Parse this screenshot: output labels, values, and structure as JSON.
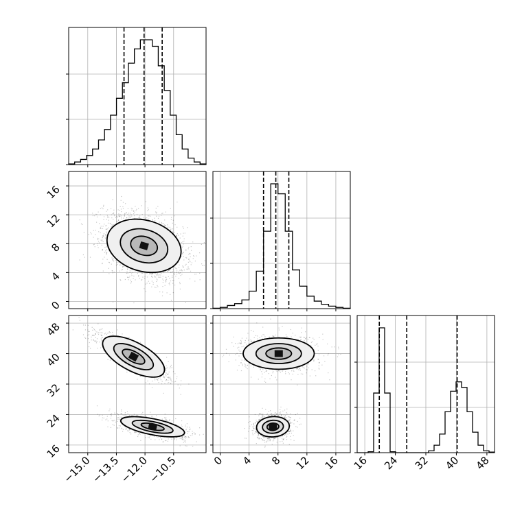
{
  "chart_data": {
    "type": "corner",
    "parameters": [
      "",
      "",
      ""
    ],
    "ranges": [
      [
        -16.0,
        -8.8
      ],
      [
        -1.0,
        18.0
      ],
      [
        14.0,
        50.0
      ]
    ],
    "ticks": [
      {
        "values": [
          -15.0,
          -13.5,
          -12.0,
          -10.5
        ],
        "labels": [
          "−15.0",
          "−13.5",
          "−12.0",
          "−10.5"
        ]
      },
      {
        "values": [
          0,
          4,
          8,
          12,
          16
        ],
        "labels": [
          "0",
          "4",
          "8",
          "12",
          "16"
        ]
      },
      {
        "values": [
          16,
          24,
          32,
          40,
          48
        ],
        "labels": [
          "16",
          "24",
          "32",
          "40",
          "48"
        ]
      }
    ],
    "quantiles": [
      [
        -13.1,
        -12.05,
        -11.1
      ],
      [
        6.0,
        7.7,
        9.5
      ],
      [
        19.8,
        27.0,
        40.2
      ]
    ],
    "histograms": [
      {
        "counts": [
          0.5,
          2,
          4,
          7,
          12,
          19,
          27,
          38,
          51,
          63,
          78,
          89,
          96,
          96,
          91,
          76,
          57,
          38,
          23,
          12,
          5,
          2,
          0.5
        ]
      },
      {
        "counts": [
          0.3,
          1,
          2.5,
          4,
          7,
          14,
          30,
          62,
          100,
          92,
          62,
          31,
          18,
          10,
          6,
          3.5,
          2,
          1,
          0.3
        ]
      },
      {
        "counts": [
          0,
          0,
          0.5,
          32,
          67,
          32,
          0.5,
          0,
          0,
          0,
          0,
          0,
          0,
          1,
          4,
          10,
          22,
          33,
          38,
          35,
          22,
          11,
          4,
          1,
          0.3
        ]
      }
    ],
    "scatter_clusters": [
      {
        "panel": [
          1,
          0
        ],
        "center": [
          -12.05,
          7.7
        ],
        "sigma": [
          1.05,
          2.3
        ],
        "corr": -0.35,
        "count": 2600
      },
      {
        "panel": [
          2,
          0
        ],
        "center": [
          -12.6,
          39.2
        ],
        "sigma": [
          0.95,
          3.0
        ],
        "corr": -0.85,
        "count": 1300
      },
      {
        "panel": [
          2,
          0
        ],
        "center": [
          -11.6,
          20.8
        ],
        "sigma": [
          0.9,
          1.5
        ],
        "corr": -0.6,
        "count": 1300
      },
      {
        "panel": [
          2,
          1
        ],
        "center": [
          8.1,
          40.0
        ],
        "sigma": [
          2.6,
          2.4
        ],
        "corr": 0.0,
        "count": 1300
      },
      {
        "panel": [
          2,
          1
        ],
        "center": [
          7.3,
          20.8
        ],
        "sigma": [
          1.2,
          1.6
        ],
        "corr": 0.1,
        "count": 1300
      }
    ],
    "grid": true
  }
}
